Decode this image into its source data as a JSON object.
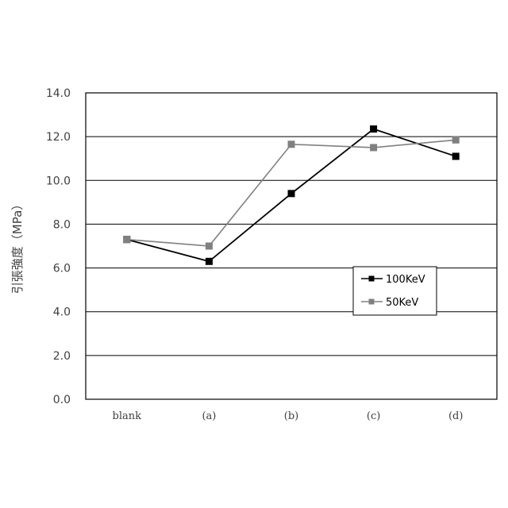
{
  "chart_data": {
    "type": "line",
    "categories": [
      "blank",
      "(a)",
      "(b)",
      "(c)",
      "(d)"
    ],
    "series": [
      {
        "name": "100KeV",
        "values": [
          7.3,
          6.3,
          9.4,
          12.35,
          11.1
        ],
        "color": "#000000"
      },
      {
        "name": "50KeV",
        "values": [
          7.3,
          7.0,
          11.65,
          11.5,
          11.85
        ],
        "color": "#808080"
      }
    ],
    "ylabel": "引張強度（MPa）",
    "ylim": [
      0,
      14
    ],
    "yticks": [
      "0.0",
      "2.0",
      "4.0",
      "6.0",
      "8.0",
      "10.0",
      "12.0",
      "14.0"
    ],
    "grid": true,
    "legend_position": "right-middle"
  }
}
